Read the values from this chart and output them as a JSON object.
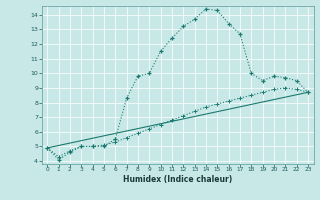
{
  "xlabel": "Humidex (Indice chaleur)",
  "background_color": "#c8e8e8",
  "grid_color": "#b0d0d0",
  "line_color": "#1a7a6e",
  "x_min": 0,
  "x_max": 23,
  "y_min": 4,
  "y_max": 14,
  "line1_x": [
    0,
    1,
    2,
    3,
    4,
    5,
    6,
    7,
    8,
    9,
    10,
    11,
    12,
    13,
    14,
    15,
    16,
    17,
    18,
    19,
    20,
    21,
    22,
    23
  ],
  "line1_y": [
    4.9,
    4.1,
    4.6,
    5.0,
    5.0,
    5.0,
    5.5,
    8.3,
    9.8,
    10.0,
    11.5,
    12.4,
    13.2,
    13.7,
    14.4,
    14.3,
    13.4,
    12.7,
    10.0,
    9.5,
    9.8,
    9.7,
    9.5,
    8.7
  ],
  "line2_x": [
    0,
    1,
    2,
    3,
    4,
    5,
    6,
    7,
    8,
    9,
    10,
    11,
    12,
    13,
    14,
    15,
    16,
    17,
    18,
    19,
    20,
    21,
    22,
    23
  ],
  "line2_y": [
    4.9,
    4.3,
    4.7,
    5.0,
    5.0,
    5.1,
    5.3,
    5.6,
    5.9,
    6.2,
    6.5,
    6.8,
    7.1,
    7.4,
    7.7,
    7.9,
    8.1,
    8.3,
    8.5,
    8.7,
    8.9,
    9.0,
    8.9,
    8.7
  ],
  "line3_x": [
    0,
    23
  ],
  "line3_y": [
    4.9,
    8.7
  ],
  "xtick_labels": [
    "0",
    "1",
    "2",
    "3",
    "4",
    "5",
    "6",
    "7",
    "8",
    "9",
    "10",
    "11",
    "12",
    "13",
    "14",
    "15",
    "16",
    "17",
    "18",
    "19",
    "20",
    "21",
    "22",
    "23"
  ],
  "ytick_labels": [
    "4",
    "5",
    "6",
    "7",
    "8",
    "9",
    "10",
    "11",
    "12",
    "13",
    "14"
  ]
}
